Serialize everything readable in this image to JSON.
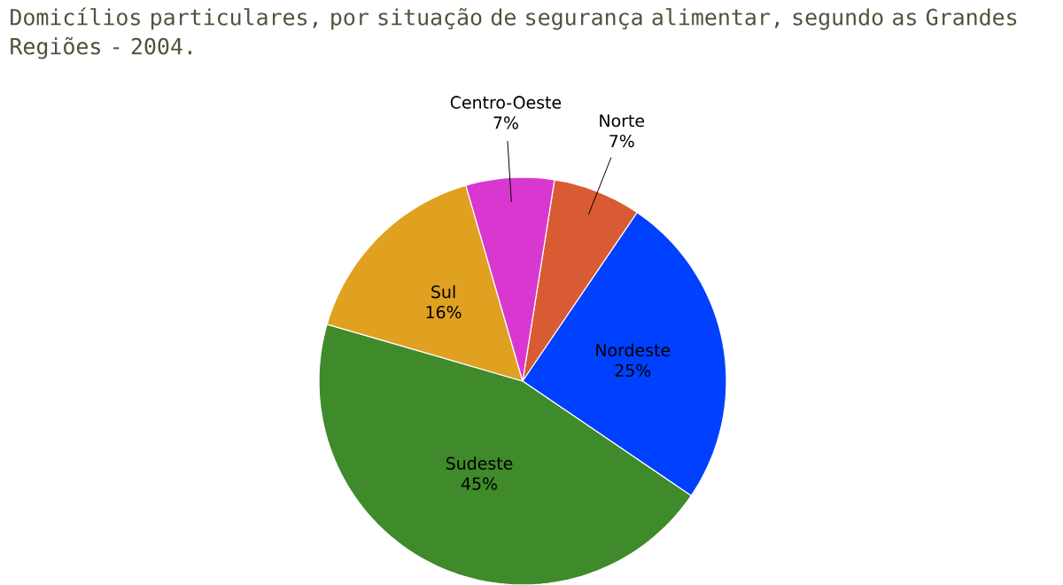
{
  "chart_data": {
    "type": "pie",
    "title": "Domicílios particulares, por situação de segurança alimentar, segundo as Grandes Regiões - 2004.",
    "categories": [
      "Norte",
      "Nordeste",
      "Sudeste",
      "Sul",
      "Centro-Oeste"
    ],
    "values": [
      7,
      25,
      45,
      16,
      7
    ],
    "value_labels": [
      "7%",
      "25%",
      "45%",
      "16%",
      "7%"
    ],
    "colors": [
      "#d95b34",
      "#0040ff",
      "#3f8a2a",
      "#e0a020",
      "#d838d0"
    ]
  }
}
